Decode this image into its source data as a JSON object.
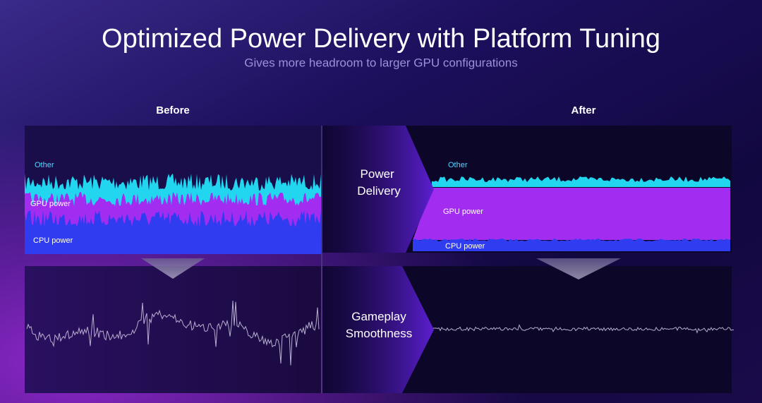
{
  "header": {
    "title": "Optimized Power Delivery with Platform Tuning",
    "subtitle": "Gives more headroom to larger GPU configurations"
  },
  "before": {
    "heading": "Before",
    "labels": {
      "other": "Other",
      "gpu": "GPU power",
      "cpu": "CPU power"
    }
  },
  "after": {
    "heading": "After",
    "labels": {
      "other": "Other",
      "gpu": "GPU power",
      "cpu": "CPU power"
    }
  },
  "arrows": {
    "power": "Power Delivery",
    "gameplay": "Gameplay Smoothness"
  }
}
